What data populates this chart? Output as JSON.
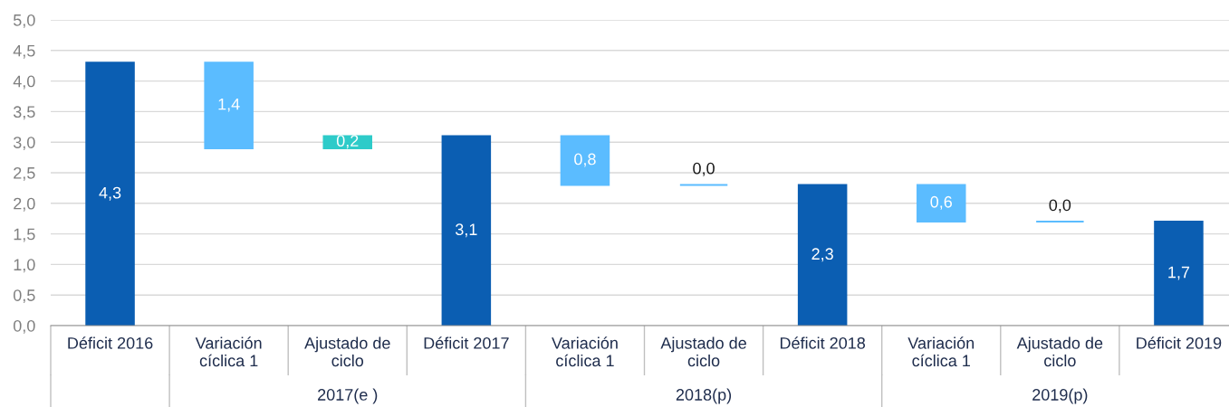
{
  "chart_data": {
    "type": "bar",
    "categories": [
      "Déficit 2016",
      "Variación\ncíclica 1",
      "Ajustado de\nciclo",
      "Déficit 2017",
      "Variación\ncíclica 1",
      "Ajustado de\nciclo",
      "Déficit 2018",
      "Variación\ncíclica 1",
      "Ajustado de\nciclo",
      "Déficit 2019"
    ],
    "values": [
      4.3,
      1.4,
      0.2,
      3.1,
      0.8,
      0.0,
      2.3,
      0.6,
      0.0,
      1.7
    ],
    "base": [
      0,
      2.9,
      2.9,
      0,
      2.3,
      2.3,
      0,
      1.7,
      1.7,
      0
    ],
    "colors": [
      "#0b5eb2",
      "#5bbcff",
      "#2ecbc9",
      "#0b5eb2",
      "#5bbcff",
      "#5bbcff",
      "#0b5eb2",
      "#5bbcff",
      "#5bbcff",
      "#0b5eb2"
    ],
    "value_labels": [
      "4,3",
      "1,4",
      "0,2",
      "3,1",
      "0,8",
      "0,0",
      "2,3",
      "0,6",
      "0,0",
      "1,7"
    ],
    "ylim": [
      0,
      5
    ],
    "yticks": [
      {
        "value": 0,
        "label": "0,0"
      },
      {
        "value": 0.5,
        "label": "0,5"
      },
      {
        "value": 1,
        "label": "1,0"
      },
      {
        "value": 1.5,
        "label": "1,5"
      },
      {
        "value": 2,
        "label": "2,0"
      },
      {
        "value": 2.5,
        "label": "2,5"
      },
      {
        "value": 3,
        "label": "3,0"
      },
      {
        "value": 3.5,
        "label": "3,5"
      },
      {
        "value": 4,
        "label": "4,0"
      },
      {
        "value": 4.5,
        "label": "4,5"
      },
      {
        "value": 5,
        "label": "5,0"
      }
    ],
    "grid": "y",
    "annotations": [
      "2017(e )",
      "2018(p)",
      "2019(p)"
    ]
  }
}
